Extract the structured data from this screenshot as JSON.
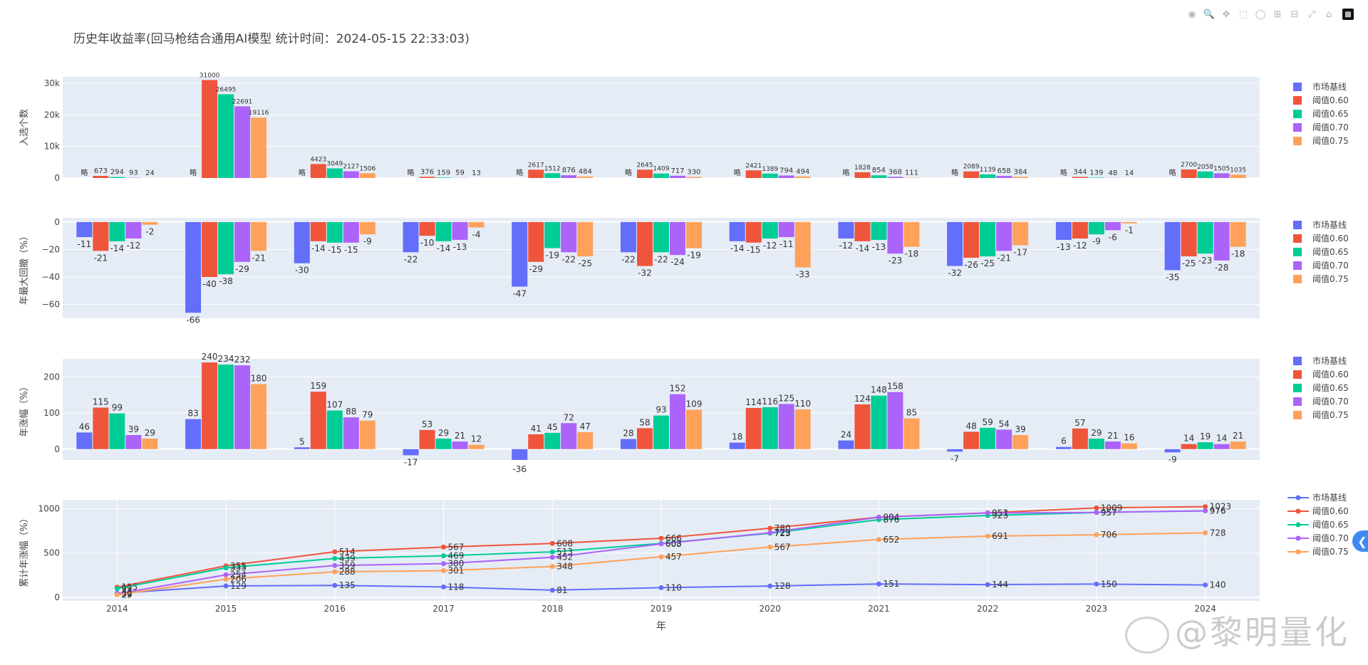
{
  "title": "历史年收益率(回马枪结合通用AI模型 统计时间：2024-05-15 22:33:03)",
  "modebar": [
    "camera-icon",
    "zoom-icon",
    "pan-icon",
    "box-select-icon",
    "lasso-icon",
    "zoom-in-icon",
    "zoom-out-icon",
    "autoscale-icon",
    "home-icon",
    "plotly-logo-icon"
  ],
  "watermark": "@黎明量化",
  "x_axis_title": "年",
  "colors": {
    "市场基线": "#636efa",
    "阈值0.60": "#ef553b",
    "阈值0.65": "#00cc96",
    "阈值0.70": "#ab63fa",
    "阈值0.75": "#ffa15a"
  },
  "chart_data": [
    {
      "type": "bar",
      "ylabel": "入选个数",
      "ylim": [
        0,
        32000
      ],
      "yticks": [
        "0",
        "10k",
        "20k",
        "30k"
      ],
      "ytick_values": [
        0,
        10000,
        20000,
        30000
      ],
      "categories": [
        "2014",
        "2015",
        "2016",
        "2017",
        "2018",
        "2019",
        "2020",
        "2021",
        "2022",
        "2023",
        "2024"
      ],
      "legend": [
        "市场基线",
        "阈值0.60",
        "阈值0.65",
        "阈值0.70",
        "阈值0.75"
      ],
      "series": [
        {
          "name": "市场基线",
          "values": [
            0,
            0,
            0,
            0,
            0,
            0,
            0,
            0,
            0,
            0,
            0
          ],
          "labels": [
            "略",
            "略",
            "略",
            "略",
            "略",
            "略",
            "略",
            "略",
            "略",
            "略",
            "略"
          ]
        },
        {
          "name": "阈值0.60",
          "values": [
            673,
            31000,
            4423,
            376,
            2617,
            2645,
            2421,
            1828,
            2089,
            344,
            2700
          ],
          "labels": [
            "673",
            "31000",
            "4423",
            "376",
            "2617",
            "2645",
            "2421",
            "1828",
            "2089",
            "344",
            "2700"
          ]
        },
        {
          "name": "阈值0.65",
          "values": [
            294,
            26495,
            3049,
            159,
            1512,
            1409,
            1389,
            854,
            1139,
            139,
            2058
          ],
          "labels": [
            "294",
            "26495",
            "3049",
            "159",
            "1512",
            "1409",
            "1389",
            "854",
            "1139",
            "139",
            "2058"
          ]
        },
        {
          "name": "阈值0.70",
          "values": [
            93,
            22691,
            2127,
            59,
            876,
            717,
            794,
            368,
            658,
            48,
            1505
          ],
          "labels": [
            "93",
            "22691",
            "2127",
            "59",
            "876",
            "717",
            "794",
            "368",
            "658",
            "48",
            "1505"
          ]
        },
        {
          "name": "阈值0.75",
          "values": [
            24,
            19116,
            1506,
            13,
            484,
            330,
            494,
            111,
            384,
            14,
            1035
          ],
          "labels": [
            "24",
            "19116",
            "1506",
            "13",
            "484",
            "330",
            "494",
            "111",
            "384",
            "14",
            "1035"
          ]
        }
      ]
    },
    {
      "type": "bar",
      "ylabel": "年最大回撤（%）",
      "ylim": [
        -70,
        3
      ],
      "yticks": [
        "0",
        "−20",
        "−40",
        "−60"
      ],
      "ytick_values": [
        0,
        -20,
        -40,
        -60
      ],
      "categories": [
        "2014",
        "2015",
        "2016",
        "2017",
        "2018",
        "2019",
        "2020",
        "2021",
        "2022",
        "2023",
        "2024"
      ],
      "legend": [
        "市场基线",
        "阈值0.60",
        "阈值0.65",
        "阈值0.70",
        "阈值0.75"
      ],
      "series": [
        {
          "name": "市场基线",
          "values": [
            -11,
            -66,
            -30,
            -22,
            -47,
            -22,
            -14,
            -12,
            -32,
            -13,
            -35
          ]
        },
        {
          "name": "阈值0.60",
          "values": [
            -21,
            -40,
            -14,
            -10,
            -29,
            -32,
            -15,
            -14,
            -26,
            -12,
            -25
          ]
        },
        {
          "name": "阈值0.65",
          "values": [
            -14,
            -38,
            -15,
            -14,
            -19,
            -22,
            -12,
            -13,
            -25,
            -9,
            -23
          ]
        },
        {
          "name": "阈值0.70",
          "values": [
            -12,
            -29,
            -15,
            -13,
            -22,
            -24,
            -11,
            -23,
            -21,
            -6,
            -28
          ]
        },
        {
          "name": "阈值0.75",
          "values": [
            -2,
            -21,
            -9,
            -4,
            -25,
            -19,
            -33,
            -18,
            -17,
            -1,
            -18
          ]
        }
      ]
    },
    {
      "type": "bar",
      "ylabel": "年涨幅（%）",
      "ylim": [
        -30,
        250
      ],
      "yticks": [
        "0",
        "100",
        "200"
      ],
      "ytick_values": [
        0,
        100,
        200
      ],
      "categories": [
        "2014",
        "2015",
        "2016",
        "2017",
        "2018",
        "2019",
        "2020",
        "2021",
        "2022",
        "2023",
        "2024"
      ],
      "legend": [
        "市场基线",
        "阈值0.60",
        "阈值0.65",
        "阈值0.70",
        "阈值0.75"
      ],
      "series": [
        {
          "name": "市场基线",
          "values": [
            46,
            83,
            5,
            -17,
            -36,
            28,
            18,
            24,
            -7,
            6,
            -9
          ]
        },
        {
          "name": "阈值0.60",
          "values": [
            115,
            240,
            159,
            53,
            41,
            58,
            114,
            124,
            48,
            57,
            14
          ]
        },
        {
          "name": "阈值0.65",
          "values": [
            99,
            234,
            107,
            29,
            45,
            93,
            116,
            148,
            59,
            29,
            19
          ]
        },
        {
          "name": "阈值0.70",
          "values": [
            39,
            232,
            88,
            21,
            72,
            152,
            125,
            158,
            54,
            21,
            14
          ]
        },
        {
          "name": "阈值0.75",
          "values": [
            29,
            180,
            79,
            12,
            47,
            109,
            110,
            85,
            39,
            16,
            21
          ]
        }
      ]
    },
    {
      "type": "line",
      "ylabel": "累计年涨幅（%）",
      "xlabel": "年",
      "ylim": [
        -40,
        1100
      ],
      "yticks": [
        "0",
        "500",
        "1000"
      ],
      "ytick_values": [
        0,
        500,
        1000
      ],
      "x": [
        "2014",
        "2015",
        "2016",
        "2017",
        "2018",
        "2019",
        "2020",
        "2021",
        "2022",
        "2023",
        "2024"
      ],
      "legend": [
        "市场基线",
        "阈值0.60",
        "阈值0.65",
        "阈值0.70",
        "阈值0.75"
      ],
      "series": [
        {
          "name": "市场基线",
          "values": [
            46,
            129,
            135,
            118,
            81,
            110,
            128,
            151,
            144,
            150,
            140
          ]
        },
        {
          "name": "阈值0.60",
          "values": [
            115,
            355,
            514,
            567,
            608,
            666,
            780,
            904,
            953,
            1009,
            1023
          ]
        },
        {
          "name": "阈值0.65",
          "values": [
            99,
            333,
            439,
            469,
            513,
            608,
            723,
            876,
            923,
            957,
            976
          ]
        },
        {
          "name": "阈值0.70",
          "values": [
            39,
            254,
            359,
            380,
            452,
            603,
            729,
            904,
            951,
            957,
            976
          ]
        },
        {
          "name": "阈值0.75",
          "values": [
            29,
            206,
            288,
            301,
            348,
            457,
            567,
            652,
            691,
            706,
            728
          ]
        }
      ]
    }
  ]
}
